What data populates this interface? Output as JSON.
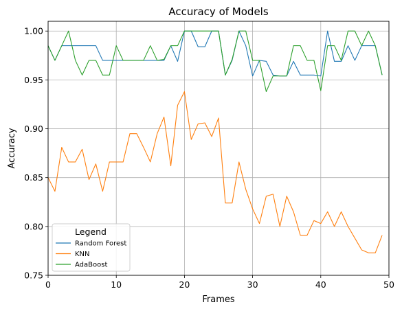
{
  "chart_data": {
    "type": "line",
    "title": "Accuracy of Models",
    "xlabel": "Frames",
    "ylabel": "Accuracy",
    "xlim": [
      0,
      50
    ],
    "ylim": [
      0.75,
      1.01
    ],
    "xticks": [
      0,
      10,
      20,
      30,
      40,
      50
    ],
    "yticks": [
      0.75,
      0.8,
      0.85,
      0.9,
      0.95,
      1.0
    ],
    "xtick_labels": [
      "0",
      "10",
      "20",
      "30",
      "40",
      "50"
    ],
    "ytick_labels": [
      "0.75",
      "0.80",
      "0.85",
      "0.90",
      "0.95",
      "1.00"
    ],
    "grid": true,
    "legend": {
      "title": "Legend",
      "placement": "lower-left"
    },
    "x": [
      0,
      1,
      2,
      3,
      4,
      5,
      6,
      7,
      8,
      9,
      10,
      11,
      12,
      13,
      14,
      15,
      16,
      17,
      18,
      19,
      20,
      21,
      22,
      23,
      24,
      25,
      26,
      27,
      28,
      29,
      30,
      31,
      32,
      33,
      34,
      35,
      36,
      37,
      38,
      39,
      40,
      41,
      42,
      43,
      44,
      45,
      46,
      47,
      48,
      49
    ],
    "series": [
      {
        "name": "Random Forest",
        "color": "#1f77b4",
        "values": [
          0.985,
          0.97,
          0.985,
          0.985,
          0.985,
          0.985,
          0.985,
          0.985,
          0.97,
          0.97,
          0.97,
          0.97,
          0.97,
          0.97,
          0.97,
          0.97,
          0.97,
          0.97,
          0.985,
          0.969,
          1.0,
          1.0,
          0.984,
          0.984,
          1.0,
          1.0,
          0.955,
          0.97,
          1.0,
          0.985,
          0.954,
          0.97,
          0.969,
          0.955,
          0.954,
          0.954,
          0.969,
          0.955,
          0.955,
          0.955,
          0.954,
          1.0,
          0.969,
          0.969,
          0.985,
          0.97,
          0.985,
          0.985,
          0.985,
          0.955
        ]
      },
      {
        "name": "KNN",
        "color": "#ff7f0e",
        "values": [
          0.85,
          0.836,
          0.881,
          0.866,
          0.866,
          0.879,
          0.848,
          0.864,
          0.836,
          0.866,
          0.866,
          0.866,
          0.895,
          0.895,
          0.881,
          0.866,
          0.895,
          0.912,
          0.862,
          0.924,
          0.938,
          0.889,
          0.905,
          0.906,
          0.892,
          0.911,
          0.824,
          0.824,
          0.866,
          0.838,
          0.818,
          0.803,
          0.831,
          0.833,
          0.8,
          0.831,
          0.815,
          0.791,
          0.791,
          0.806,
          0.803,
          0.815,
          0.8,
          0.815,
          0.8,
          0.788,
          0.776,
          0.773,
          0.773,
          0.791
        ]
      },
      {
        "name": "AdaBoost",
        "color": "#2ca02c",
        "values": [
          0.985,
          0.97,
          0.985,
          1.0,
          0.97,
          0.955,
          0.97,
          0.97,
          0.955,
          0.955,
          0.985,
          0.97,
          0.97,
          0.97,
          0.97,
          0.985,
          0.97,
          0.971,
          0.985,
          0.985,
          1.0,
          1.0,
          1.0,
          1.0,
          1.0,
          1.0,
          0.955,
          0.971,
          1.0,
          1.0,
          0.97,
          0.97,
          0.938,
          0.954,
          0.954,
          0.954,
          0.985,
          0.985,
          0.97,
          0.97,
          0.939,
          0.985,
          0.985,
          0.97,
          1.0,
          1.0,
          0.985,
          1.0,
          0.985,
          0.955
        ]
      }
    ]
  }
}
